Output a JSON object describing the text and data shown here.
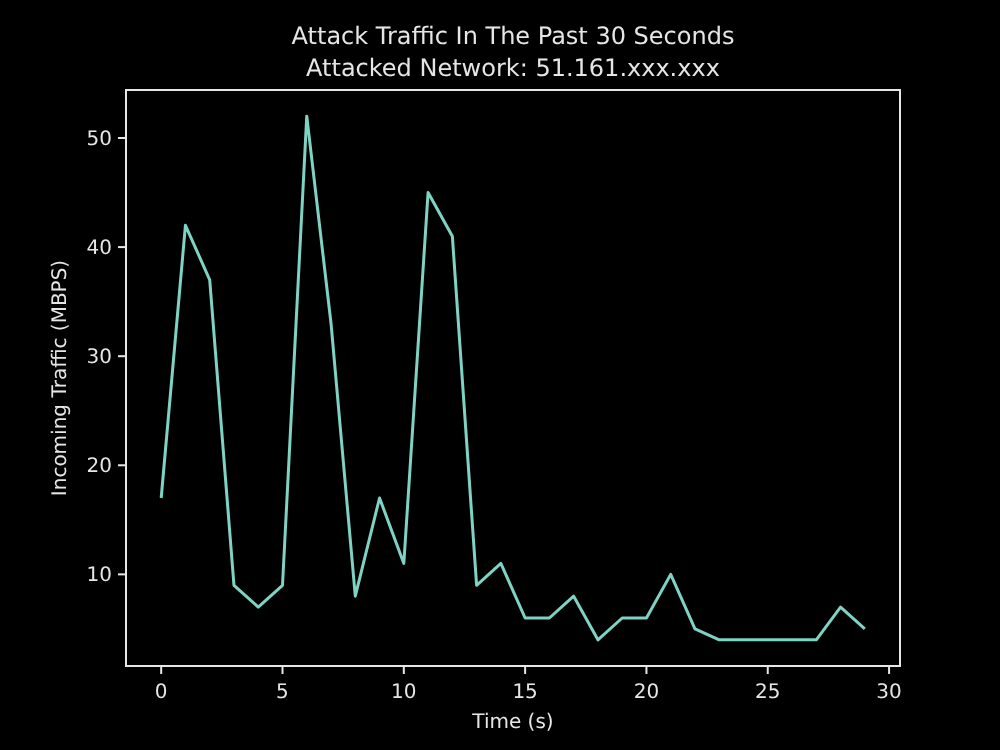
{
  "chart_data": {
    "type": "line",
    "title": "Attack Traffic In The Past 30 Seconds",
    "subtitle": "Attacked Network: 51.161.xxx.xxx",
    "xlabel": "Time (s)",
    "ylabel": "Incoming Traffic (MBPS)",
    "x": [
      0,
      1,
      2,
      3,
      4,
      5,
      6,
      7,
      8,
      9,
      10,
      11,
      12,
      13,
      14,
      15,
      16,
      17,
      18,
      19,
      20,
      21,
      22,
      23,
      24,
      25,
      26,
      27,
      28,
      29
    ],
    "series": [
      {
        "color": "#7fd3c4",
        "values": [
          17,
          42,
          37,
          9,
          7,
          9,
          52,
          33,
          8,
          17,
          11,
          45,
          41,
          9,
          11,
          6,
          6,
          8,
          4,
          6,
          6,
          10,
          5,
          4,
          4,
          4,
          4,
          4,
          7,
          5
        ]
      }
    ],
    "xlim": [
      -1.45,
      30.45
    ],
    "xticks": [
      0,
      5,
      10,
      15,
      20,
      25,
      30
    ],
    "ylim": [
      1.6,
      54.4
    ],
    "yticks": [
      10,
      20,
      30,
      40,
      50
    ],
    "grid": false,
    "marker": "none",
    "line_style": "solid"
  }
}
